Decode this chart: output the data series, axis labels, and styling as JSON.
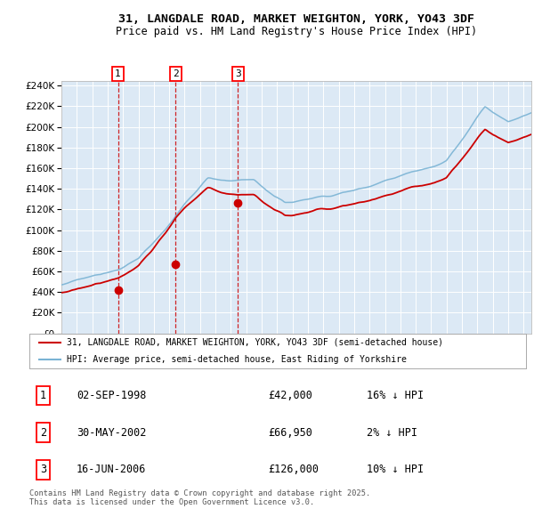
{
  "title": "31, LANGDALE ROAD, MARKET WEIGHTON, YORK, YO43 3DF",
  "subtitle": "Price paid vs. HM Land Registry's House Price Index (HPI)",
  "legend_line1": "31, LANGDALE ROAD, MARKET WEIGHTON, YORK, YO43 3DF (semi-detached house)",
  "legend_line2": "HPI: Average price, semi-detached house, East Riding of Yorkshire",
  "footer": "Contains HM Land Registry data © Crown copyright and database right 2025.\nThis data is licensed under the Open Government Licence v3.0.",
  "sales": [
    {
      "num": 1,
      "date": "02-SEP-1998",
      "price": 42000,
      "rel": "16% ↓ HPI",
      "year": 1998.67
    },
    {
      "num": 2,
      "date": "30-MAY-2002",
      "price": 66950,
      "rel": "2% ↓ HPI",
      "year": 2002.41
    },
    {
      "num": 3,
      "date": "16-JUN-2006",
      "price": 126000,
      "rel": "10% ↓ HPI",
      "year": 2006.45
    }
  ],
  "hpi_color": "#7ab3d4",
  "property_color": "#cc0000",
  "background_color": "#dce9f5",
  "grid_color": "#ffffff",
  "dashed_line_color": "#cc0000",
  "ylim": [
    0,
    244000
  ],
  "ytick_step": 20000,
  "xmin": 1995.0,
  "xmax": 2025.5
}
